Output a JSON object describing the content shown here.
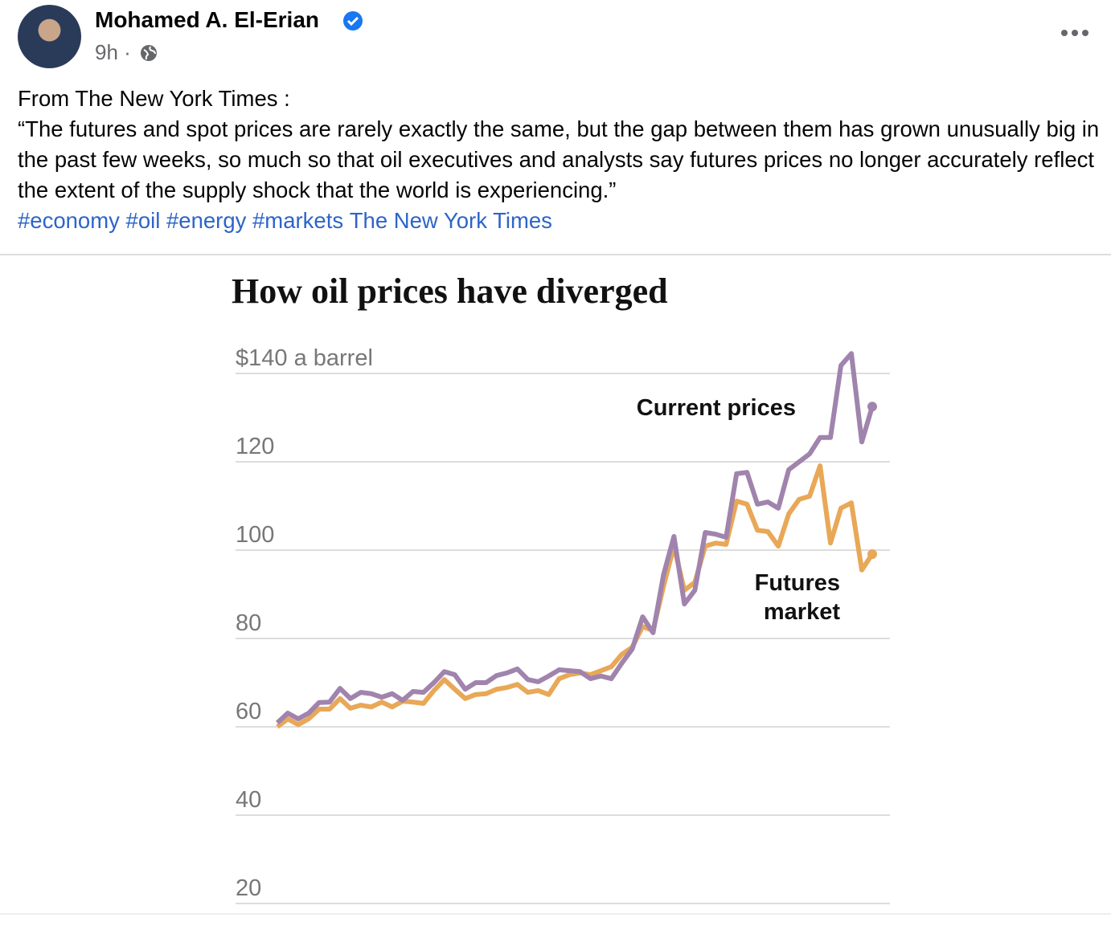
{
  "post": {
    "author": "Mohamed A. El-Erian",
    "time": "9h",
    "intro": "From The New York Times :",
    "quote": "“The futures and spot prices are rarely exactly the same, but the gap between them has grown unusually big in the past few weeks, so much so that oil executives and analysts say futures prices no longer accurately reflect the extent of the supply shock that the world is experiencing.”",
    "links": [
      "#economy",
      "#oil",
      "#energy",
      "#markets",
      "The New York Times"
    ]
  },
  "chart_data": {
    "type": "line",
    "title": "How oil prices have diverged",
    "categories": [
      null,
      null,
      null,
      null,
      null,
      null,
      null,
      null,
      null,
      null,
      null,
      null,
      null,
      null,
      null,
      null,
      null,
      null,
      null,
      null,
      null,
      null,
      null,
      null,
      null,
      null,
      null,
      null,
      null,
      null,
      null,
      null,
      null,
      null,
      null,
      null,
      null,
      null,
      null,
      null,
      null,
      null,
      null,
      null,
      null,
      null,
      null,
      null,
      null,
      null,
      null,
      null,
      null,
      null,
      null,
      null,
      null,
      null
    ],
    "series": [
      {
        "name": "Current prices",
        "color": "#a084ad",
        "values": [
          60.9,
          63.1,
          61.8,
          63.1,
          65.5,
          65.6,
          68.7,
          66.4,
          67.8,
          67.5,
          66.7,
          67.5,
          66,
          68,
          67.8,
          70,
          72.5,
          71.8,
          68.5,
          70,
          70,
          71.6,
          72.2,
          73.1,
          70.7,
          70.2,
          71.5,
          72.9,
          72.7,
          72.5,
          70.9,
          71.5,
          70.9,
          74.4,
          77.6,
          84.9,
          81.3,
          94.4,
          103.1,
          87.8,
          90.9,
          104,
          103.6,
          102.9,
          117.3,
          117.6,
          110.4,
          110.9,
          109.5,
          118.2,
          120,
          121.8,
          125.5,
          125.5,
          141.8,
          144.5,
          124.5,
          132.5
        ]
      },
      {
        "name": "Futures market",
        "color": "#e8a857",
        "values": [
          60,
          61.8,
          60.5,
          61.8,
          64,
          64,
          66.4,
          64.2,
          64.9,
          64.5,
          65.6,
          64.5,
          65.8,
          65.6,
          65.3,
          68.2,
          70.7,
          68.5,
          66.4,
          67.3,
          67.5,
          68.5,
          68.9,
          69.6,
          67.8,
          68.2,
          67.3,
          70.9,
          71.8,
          72.2,
          71.8,
          72.7,
          73.6,
          76.4,
          78,
          82.7,
          81.8,
          91.8,
          100.9,
          90.9,
          92.7,
          100.9,
          101.6,
          101.3,
          111.1,
          110.4,
          104.5,
          104.2,
          100.9,
          108.2,
          111.5,
          112.2,
          119.1,
          101.6,
          109.5,
          110.7,
          95.5,
          99.1
        ]
      }
    ],
    "ylim": [
      20,
      140
    ],
    "yticks": [
      20,
      40,
      60,
      80,
      100,
      120,
      {
        "value": 140,
        "label": "$140 a barrel"
      }
    ],
    "grid": true
  }
}
